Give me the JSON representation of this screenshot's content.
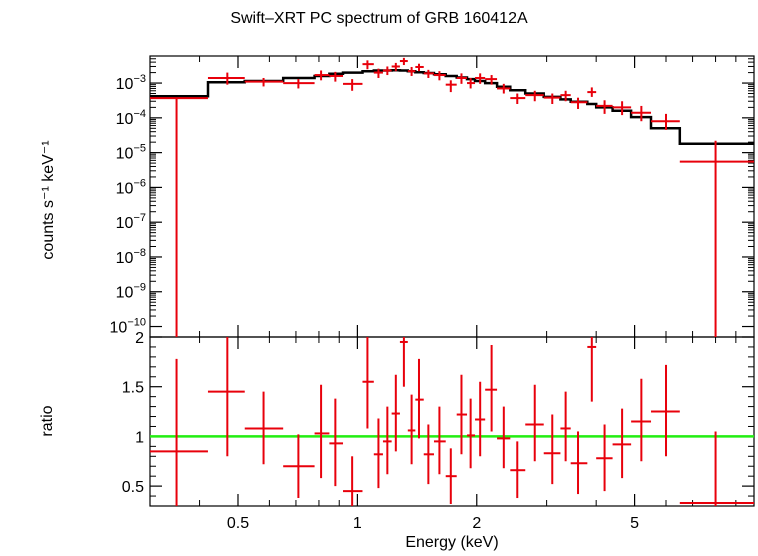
{
  "colors": {
    "data": "#e8000b",
    "model": "#000000",
    "unity": "#22ee11",
    "axes": "#000000"
  },
  "chart_data": [
    {
      "type": "scatter",
      "title": "Swift–XRT PC spectrum of GRB 160412A",
      "ylabel": "counts s⁻¹ keV⁻¹",
      "xlabel": "",
      "xscale": "log",
      "yscale": "log",
      "xlim": [
        0.3,
        10
      ],
      "ylim": [
        5e-11,
        0.006
      ],
      "y_tick_exponents": [
        -3,
        -4,
        -5,
        -6,
        -7,
        -8,
        -9,
        -10
      ],
      "series": [
        {
          "type": "errorbar",
          "points": [
            {
              "x": 0.35,
              "xlo": 0.3,
              "xhi": 0.42,
              "y": 0.00037,
              "ylo": 5e-11,
              "yhi": 0.00037
            },
            {
              "x": 0.47,
              "xlo": 0.42,
              "xhi": 0.52,
              "y": 0.0014,
              "ylo": 0.0009,
              "yhi": 0.002
            },
            {
              "x": 0.58,
              "xlo": 0.52,
              "xhi": 0.65,
              "y": 0.0011,
              "ylo": 0.0008,
              "yhi": 0.0014
            },
            {
              "x": 0.71,
              "xlo": 0.65,
              "xhi": 0.78,
              "y": 0.001,
              "ylo": 0.0007,
              "yhi": 0.0013
            },
            {
              "x": 0.81,
              "xlo": 0.78,
              "xhi": 0.85,
              "y": 0.0017,
              "ylo": 0.0012,
              "yhi": 0.0023
            },
            {
              "x": 0.88,
              "xlo": 0.85,
              "xhi": 0.92,
              "y": 0.0016,
              "ylo": 0.0011,
              "yhi": 0.0021
            },
            {
              "x": 0.97,
              "xlo": 0.92,
              "xhi": 1.03,
              "y": 0.00095,
              "ylo": 0.0006,
              "yhi": 0.0013
            },
            {
              "x": 1.06,
              "xlo": 1.03,
              "xhi": 1.1,
              "y": 0.0035,
              "ylo": 0.0025,
              "yhi": 0.0045
            },
            {
              "x": 1.13,
              "xlo": 1.1,
              "xhi": 1.16,
              "y": 0.002,
              "ylo": 0.0014,
              "yhi": 0.0026
            },
            {
              "x": 1.19,
              "xlo": 1.16,
              "xhi": 1.22,
              "y": 0.0023,
              "ylo": 0.0017,
              "yhi": 0.003
            },
            {
              "x": 1.25,
              "xlo": 1.22,
              "xhi": 1.28,
              "y": 0.003,
              "ylo": 0.0022,
              "yhi": 0.0038
            },
            {
              "x": 1.31,
              "xlo": 1.28,
              "xhi": 1.34,
              "y": 0.0043,
              "ylo": 0.0033,
              "yhi": 0.0053
            },
            {
              "x": 1.37,
              "xlo": 1.34,
              "xhi": 1.4,
              "y": 0.0022,
              "ylo": 0.0016,
              "yhi": 0.0029
            },
            {
              "x": 1.43,
              "xlo": 1.4,
              "xhi": 1.47,
              "y": 0.0029,
              "ylo": 0.0022,
              "yhi": 0.0036
            },
            {
              "x": 1.51,
              "xlo": 1.47,
              "xhi": 1.56,
              "y": 0.0019,
              "ylo": 0.0014,
              "yhi": 0.0024
            },
            {
              "x": 1.61,
              "xlo": 1.56,
              "xhi": 1.67,
              "y": 0.0017,
              "ylo": 0.0012,
              "yhi": 0.0022
            },
            {
              "x": 1.72,
              "xlo": 1.67,
              "xhi": 1.78,
              "y": 0.0009,
              "ylo": 0.00055,
              "yhi": 0.0012
            },
            {
              "x": 1.83,
              "xlo": 1.78,
              "xhi": 1.89,
              "y": 0.0014,
              "ylo": 0.00095,
              "yhi": 0.0019
            },
            {
              "x": 1.93,
              "xlo": 1.89,
              "xhi": 1.98,
              "y": 0.001,
              "ylo": 0.0007,
              "yhi": 0.0014
            },
            {
              "x": 2.04,
              "xlo": 1.98,
              "xhi": 2.1,
              "y": 0.0014,
              "ylo": 0.00095,
              "yhi": 0.0019
            },
            {
              "x": 2.18,
              "xlo": 2.1,
              "xhi": 2.25,
              "y": 0.0013,
              "ylo": 0.0009,
              "yhi": 0.0017
            },
            {
              "x": 2.34,
              "xlo": 2.25,
              "xhi": 2.43,
              "y": 0.0007,
              "ylo": 0.0005,
              "yhi": 0.00095
            },
            {
              "x": 2.53,
              "xlo": 2.43,
              "xhi": 2.65,
              "y": 0.00037,
              "ylo": 0.00025,
              "yhi": 0.0005
            },
            {
              "x": 2.8,
              "xlo": 2.65,
              "xhi": 2.95,
              "y": 0.00045,
              "ylo": 0.0003,
              "yhi": 0.0006
            },
            {
              "x": 3.1,
              "xlo": 2.95,
              "xhi": 3.25,
              "y": 0.00038,
              "ylo": 0.00025,
              "yhi": 0.0005
            },
            {
              "x": 3.35,
              "xlo": 3.25,
              "xhi": 3.45,
              "y": 0.00045,
              "ylo": 0.0003,
              "yhi": 0.0006
            },
            {
              "x": 3.6,
              "xlo": 3.45,
              "xhi": 3.8,
              "y": 0.00028,
              "ylo": 0.00018,
              "yhi": 0.00038
            },
            {
              "x": 3.9,
              "xlo": 3.8,
              "xhi": 4.0,
              "y": 0.00055,
              "ylo": 0.0004,
              "yhi": 0.00075
            },
            {
              "x": 4.2,
              "xlo": 4.0,
              "xhi": 4.4,
              "y": 0.00022,
              "ylo": 0.00013,
              "yhi": 0.00032
            },
            {
              "x": 4.65,
              "xlo": 4.4,
              "xhi": 4.9,
              "y": 0.0002,
              "ylo": 0.00012,
              "yhi": 0.0003
            },
            {
              "x": 5.2,
              "xlo": 4.9,
              "xhi": 5.5,
              "y": 0.00014,
              "ylo": 8e-05,
              "yhi": 0.00022
            },
            {
              "x": 6.0,
              "xlo": 5.5,
              "xhi": 6.5,
              "y": 8e-05,
              "ylo": 4.5e-05,
              "yhi": 0.00013
            },
            {
              "x": 8.0,
              "xlo": 6.5,
              "xhi": 10.0,
              "y": 5.5e-06,
              "ylo": 5e-11,
              "yhi": 2.2e-05
            }
          ]
        },
        {
          "type": "step",
          "edges": [
            0.3,
            0.42,
            0.52,
            0.65,
            0.78,
            0.85,
            0.92,
            1.03,
            1.1,
            1.16,
            1.22,
            1.28,
            1.34,
            1.4,
            1.47,
            1.56,
            1.67,
            1.78,
            1.89,
            1.98,
            2.1,
            2.25,
            2.43,
            2.65,
            2.95,
            3.25,
            3.45,
            3.8,
            4.0,
            4.4,
            4.9,
            5.5,
            6.5,
            10.0
          ],
          "values": [
            0.00042,
            0.00105,
            0.00115,
            0.0014,
            0.0016,
            0.00185,
            0.002,
            0.0022,
            0.0023,
            0.0023,
            0.00235,
            0.0023,
            0.0022,
            0.00205,
            0.00195,
            0.0018,
            0.0016,
            0.00145,
            0.0013,
            0.00115,
            0.001,
            0.00078,
            0.00062,
            0.0005,
            0.0004,
            0.00034,
            0.00029,
            0.00025,
            0.0002,
            0.00016,
            0.000105,
            5e-05,
            1.8e-05
          ]
        }
      ]
    },
    {
      "type": "scatter",
      "title": "",
      "xlabel": "Energy (keV)",
      "ylabel": "ratio",
      "xscale": "log",
      "xlim": [
        0.3,
        10
      ],
      "ylim": [
        0.3,
        2
      ],
      "x_tick_labels": [
        "0.5",
        "1",
        "2",
        "5"
      ],
      "y_tick_labels": [
        "0.5",
        "1",
        "1.5",
        "2"
      ],
      "series": [
        {
          "type": "errorbar",
          "points": [
            {
              "x": 0.35,
              "xlo": 0.3,
              "xhi": 0.42,
              "y": 0.85,
              "ylo": 0.3,
              "yhi": 1.78
            },
            {
              "x": 0.47,
              "xlo": 0.42,
              "xhi": 0.52,
              "y": 1.45,
              "ylo": 0.8,
              "yhi": 2.0
            },
            {
              "x": 0.58,
              "xlo": 0.52,
              "xhi": 0.65,
              "y": 1.08,
              "ylo": 0.72,
              "yhi": 1.45
            },
            {
              "x": 0.71,
              "xlo": 0.65,
              "xhi": 0.78,
              "y": 0.7,
              "ylo": 0.38,
              "yhi": 1.02
            },
            {
              "x": 0.81,
              "xlo": 0.78,
              "xhi": 0.85,
              "y": 1.03,
              "ylo": 0.58,
              "yhi": 1.52
            },
            {
              "x": 0.88,
              "xlo": 0.85,
              "xhi": 0.92,
              "y": 0.93,
              "ylo": 0.5,
              "yhi": 1.38
            },
            {
              "x": 0.97,
              "xlo": 0.92,
              "xhi": 1.03,
              "y": 0.45,
              "ylo": 0.3,
              "yhi": 0.8
            },
            {
              "x": 1.06,
              "xlo": 1.03,
              "xhi": 1.1,
              "y": 1.55,
              "ylo": 1.08,
              "yhi": 2.0
            },
            {
              "x": 1.13,
              "xlo": 1.1,
              "xhi": 1.16,
              "y": 0.82,
              "ylo": 0.48,
              "yhi": 1.18
            },
            {
              "x": 1.19,
              "xlo": 1.16,
              "xhi": 1.22,
              "y": 0.95,
              "ylo": 0.62,
              "yhi": 1.3
            },
            {
              "x": 1.25,
              "xlo": 1.22,
              "xhi": 1.28,
              "y": 1.23,
              "ylo": 0.85,
              "yhi": 1.62
            },
            {
              "x": 1.31,
              "xlo": 1.28,
              "xhi": 1.34,
              "y": 1.95,
              "ylo": 1.5,
              "yhi": 2.0
            },
            {
              "x": 1.37,
              "xlo": 1.34,
              "xhi": 1.4,
              "y": 1.06,
              "ylo": 0.72,
              "yhi": 1.42
            },
            {
              "x": 1.43,
              "xlo": 1.4,
              "xhi": 1.47,
              "y": 1.37,
              "ylo": 0.98,
              "yhi": 1.78
            },
            {
              "x": 1.51,
              "xlo": 1.47,
              "xhi": 1.56,
              "y": 0.82,
              "ylo": 0.52,
              "yhi": 1.12
            },
            {
              "x": 1.61,
              "xlo": 1.56,
              "xhi": 1.67,
              "y": 0.95,
              "ylo": 0.62,
              "yhi": 1.3
            },
            {
              "x": 1.72,
              "xlo": 1.67,
              "xhi": 1.78,
              "y": 0.6,
              "ylo": 0.32,
              "yhi": 0.88
            },
            {
              "x": 1.83,
              "xlo": 1.78,
              "xhi": 1.89,
              "y": 1.22,
              "ylo": 0.82,
              "yhi": 1.62
            },
            {
              "x": 1.93,
              "xlo": 1.89,
              "xhi": 1.98,
              "y": 1.01,
              "ylo": 0.68,
              "yhi": 1.38
            },
            {
              "x": 2.04,
              "xlo": 1.98,
              "xhi": 2.1,
              "y": 1.17,
              "ylo": 0.8,
              "yhi": 1.55
            },
            {
              "x": 2.18,
              "xlo": 2.1,
              "xhi": 2.25,
              "y": 1.47,
              "ylo": 1.05,
              "yhi": 1.92
            },
            {
              "x": 2.34,
              "xlo": 2.25,
              "xhi": 2.43,
              "y": 0.98,
              "ylo": 0.68,
              "yhi": 1.3
            },
            {
              "x": 2.53,
              "xlo": 2.43,
              "xhi": 2.65,
              "y": 0.66,
              "ylo": 0.38,
              "yhi": 0.95
            },
            {
              "x": 2.8,
              "xlo": 2.65,
              "xhi": 2.95,
              "y": 1.12,
              "ylo": 0.75,
              "yhi": 1.52
            },
            {
              "x": 3.1,
              "xlo": 2.95,
              "xhi": 3.25,
              "y": 0.83,
              "ylo": 0.52,
              "yhi": 1.22
            },
            {
              "x": 3.35,
              "xlo": 3.25,
              "xhi": 3.45,
              "y": 1.08,
              "ylo": 0.75,
              "yhi": 1.45
            },
            {
              "x": 3.6,
              "xlo": 3.45,
              "xhi": 3.8,
              "y": 0.73,
              "ylo": 0.42,
              "yhi": 1.05
            },
            {
              "x": 3.9,
              "xlo": 3.8,
              "xhi": 4.0,
              "y": 1.9,
              "ylo": 1.35,
              "yhi": 2.0
            },
            {
              "x": 4.2,
              "xlo": 4.0,
              "xhi": 4.4,
              "y": 0.78,
              "ylo": 0.45,
              "yhi": 1.12
            },
            {
              "x": 4.65,
              "xlo": 4.4,
              "xhi": 4.9,
              "y": 0.92,
              "ylo": 0.58,
              "yhi": 1.28
            },
            {
              "x": 5.2,
              "xlo": 4.9,
              "xhi": 5.5,
              "y": 1.15,
              "ylo": 0.75,
              "yhi": 1.58
            },
            {
              "x": 6.0,
              "xlo": 5.5,
              "xhi": 6.5,
              "y": 1.25,
              "ylo": 0.8,
              "yhi": 1.72
            },
            {
              "x": 8.0,
              "xlo": 6.5,
              "xhi": 10.0,
              "y": 0.33,
              "ylo": 0.3,
              "yhi": 1.05
            }
          ]
        },
        {
          "type": "hline",
          "y": 1
        }
      ]
    }
  ]
}
